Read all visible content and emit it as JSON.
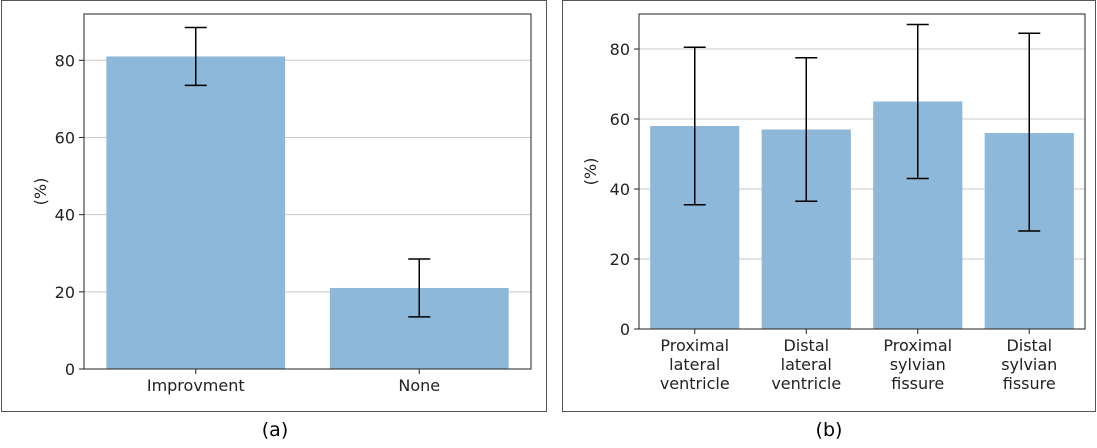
{
  "colors": {
    "bar": "#8db8da",
    "grid": "#c8c8c8",
    "axis": "#222222",
    "error": "#000000"
  },
  "chart_data": [
    {
      "type": "bar",
      "caption": "(a)",
      "ylabel": "(%)",
      "ylim": [
        0,
        92
      ],
      "yticks": [
        "0",
        "20",
        "40",
        "60",
        "80"
      ],
      "grid": true,
      "categories": [
        "Improvment",
        "None"
      ],
      "values": [
        81,
        21
      ],
      "errors": [
        [
          73.5,
          88.5
        ],
        [
          13.5,
          28.5
        ]
      ]
    },
    {
      "type": "bar",
      "caption": "(b)",
      "ylabel": "(%)",
      "ylim": [
        0,
        90
      ],
      "yticks": [
        "0",
        "20",
        "40",
        "60",
        "80"
      ],
      "grid": true,
      "categories": [
        [
          "Proximal",
          "lateral",
          "ventricle"
        ],
        [
          "Distal",
          "lateral",
          "ventricle"
        ],
        [
          "Proximal",
          "sylvian",
          "fissure"
        ],
        [
          "Distal",
          "sylvian",
          "fissure"
        ]
      ],
      "values": [
        58,
        57,
        65,
        56
      ],
      "errors": [
        [
          35.5,
          80.5
        ],
        [
          36.5,
          77.5
        ],
        [
          43,
          87
        ],
        [
          28,
          84.5
        ]
      ]
    }
  ]
}
